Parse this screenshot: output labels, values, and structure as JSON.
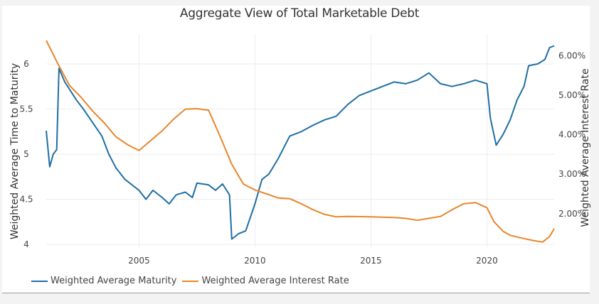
{
  "chart_data": {
    "type": "line",
    "title": "Aggregate View of Total Marketable Debt",
    "xlabel": "",
    "ylabel": "Weighted Average Time to Maturity",
    "y2label": "Weighted Average Interest Rate",
    "xlim": [
      2001.0,
      2022.9
    ],
    "ylim": [
      3.97,
      6.33
    ],
    "y2lim": [
      1.15,
      6.55
    ],
    "x_ticks": [
      2005,
      2010,
      2015,
      2020
    ],
    "x_tick_labels": [
      "2005",
      "2010",
      "2015",
      "2020"
    ],
    "y_ticks": [
      4,
      4.5,
      5,
      5.5,
      6
    ],
    "y_tick_labels": [
      "4",
      "4.5",
      "5",
      "5.5",
      "6"
    ],
    "y2_ticks": [
      2,
      3,
      4,
      5,
      6
    ],
    "y2_tick_labels": [
      "2.00%",
      "3.00%",
      "4.00%",
      "5.00%",
      "6.00%"
    ],
    "grid": true,
    "legend_position": "bottom-left",
    "series": [
      {
        "name": "Weighted Average Maturity",
        "axis": "left",
        "color": "#1f6fa3",
        "x": [
          2001.0,
          2001.15,
          2001.3,
          2001.45,
          2001.55,
          2001.8,
          2002.0,
          2002.3,
          2002.6,
          2003.0,
          2003.4,
          2003.7,
          2004.0,
          2004.4,
          2005.0,
          2005.3,
          2005.6,
          2006.0,
          2006.3,
          2006.6,
          2007.0,
          2007.3,
          2007.5,
          2008.0,
          2008.3,
          2008.6,
          2008.9,
          2009.0,
          2009.3,
          2009.6,
          2010.0,
          2010.3,
          2010.6,
          2011.0,
          2011.5,
          2012.0,
          2012.5,
          2013.0,
          2013.5,
          2014.0,
          2014.5,
          2015.0,
          2015.5,
          2016.0,
          2016.5,
          2017.0,
          2017.5,
          2018.0,
          2018.5,
          2019.0,
          2019.5,
          2020.0,
          2020.15,
          2020.4,
          2020.7,
          2021.0,
          2021.3,
          2021.6,
          2021.8,
          2022.2,
          2022.5,
          2022.7,
          2022.9
        ],
        "values": [
          5.26,
          4.86,
          5.0,
          5.05,
          5.95,
          5.8,
          5.72,
          5.6,
          5.5,
          5.35,
          5.2,
          5.0,
          4.85,
          4.72,
          4.6,
          4.5,
          4.6,
          4.52,
          4.45,
          4.55,
          4.58,
          4.52,
          4.68,
          4.66,
          4.6,
          4.67,
          4.55,
          4.06,
          4.12,
          4.15,
          4.45,
          4.72,
          4.78,
          4.95,
          5.2,
          5.25,
          5.32,
          5.38,
          5.42,
          5.55,
          5.65,
          5.7,
          5.75,
          5.8,
          5.78,
          5.82,
          5.9,
          5.78,
          5.75,
          5.78,
          5.82,
          5.78,
          5.4,
          5.1,
          5.22,
          5.38,
          5.6,
          5.75,
          5.98,
          6.0,
          6.05,
          6.18,
          6.2
        ]
      },
      {
        "name": "Weighted Average Interest Rate",
        "axis": "right",
        "unit": "%",
        "color": "#e8862a",
        "x": [
          2001.0,
          2001.5,
          2002.0,
          2002.5,
          2003.0,
          2003.5,
          2004.0,
          2004.5,
          2005.0,
          2005.5,
          2006.0,
          2006.5,
          2007.0,
          2007.5,
          2008.0,
          2008.5,
          2009.0,
          2009.5,
          2010.0,
          2010.5,
          2011.0,
          2011.5,
          2012.0,
          2012.5,
          2013.0,
          2013.5,
          2014.0,
          2015.0,
          2016.0,
          2016.5,
          2017.0,
          2017.5,
          2018.0,
          2018.5,
          2019.0,
          2019.5,
          2020.0,
          2020.3,
          2020.7,
          2021.0,
          2021.5,
          2022.0,
          2022.4,
          2022.7,
          2022.9
        ],
        "values": [
          6.39,
          5.8,
          5.25,
          4.95,
          4.6,
          4.3,
          3.95,
          3.75,
          3.6,
          3.85,
          4.1,
          4.4,
          4.65,
          4.66,
          4.62,
          3.95,
          3.25,
          2.75,
          2.6,
          2.5,
          2.4,
          2.38,
          2.25,
          2.1,
          1.98,
          1.92,
          1.93,
          1.92,
          1.9,
          1.88,
          1.83,
          1.88,
          1.93,
          2.1,
          2.25,
          2.28,
          2.15,
          1.8,
          1.55,
          1.45,
          1.38,
          1.32,
          1.28,
          1.42,
          1.62
        ]
      }
    ]
  }
}
